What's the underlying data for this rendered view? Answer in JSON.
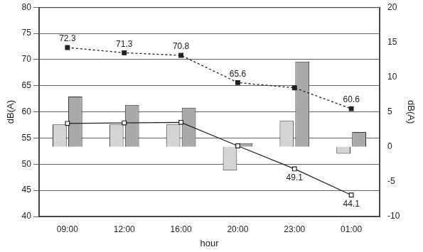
{
  "chart_data": {
    "type": "bar",
    "x_label": "hour",
    "y_label": "dB(A)",
    "y2_label": "dB(A)",
    "categories": [
      "09:00",
      "12:00",
      "16:00",
      "20:00",
      "23:00",
      "01:00"
    ],
    "ylim": [
      40,
      80
    ],
    "yticks": [
      40,
      45,
      50,
      55,
      60,
      65,
      70,
      75,
      80
    ],
    "y2lim": [
      -10,
      20
    ],
    "y2ticks": [
      -10,
      -5,
      0,
      5,
      10,
      15,
      20
    ],
    "grid": true,
    "data_labels": true,
    "series": [
      {
        "type": "bar",
        "axis": "y2",
        "color": "#d4d4d4",
        "values": [
          3.2,
          3.2,
          3.2,
          -3.4,
          3.7,
          -1.0
        ]
      },
      {
        "type": "bar",
        "axis": "y2",
        "color": "#a9a9a9",
        "values": [
          7.2,
          6.0,
          5.6,
          0.5,
          12.2,
          2.1
        ]
      },
      {
        "type": "line",
        "color": "#222222",
        "marker": "square",
        "line_style": "dashed",
        "values": [
          72.3,
          71.3,
          70.8,
          65.6,
          64.6,
          60.6
        ],
        "value_labels": [
          "72.3",
          "71.3",
          "70.8",
          "65.6",
          null,
          "60.6"
        ]
      },
      {
        "type": "line",
        "color": "#222222",
        "marker": "open_square",
        "line_style": "solid",
        "values": [
          57.8,
          57.9,
          58.0,
          53.5,
          49.1,
          44.1
        ],
        "value_labels": [
          null,
          null,
          null,
          null,
          "49.1",
          "44.1"
        ]
      }
    ]
  }
}
